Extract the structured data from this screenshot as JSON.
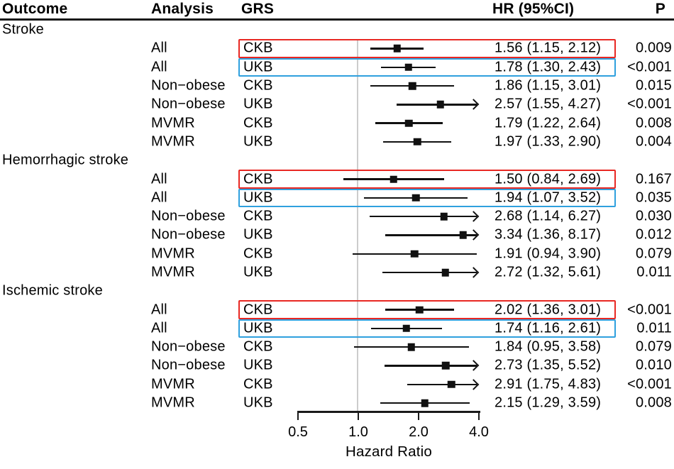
{
  "chart_data": {
    "type": "forest",
    "columns": [
      "Outcome",
      "Analysis",
      "GRS",
      "HR (95%CI)",
      "P"
    ],
    "xlabel": "Hazard Ratio",
    "axis": {
      "scale": "log2",
      "ticks": [
        0.5,
        1.0,
        2.0,
        4.0
      ],
      "tick_labels": [
        "0.5",
        "1.0",
        "2.0",
        "4.0"
      ],
      "range": [
        0.5,
        4.0
      ],
      "reference_line": 1.0,
      "clip_max": 4.0
    },
    "colors": {
      "highlight_red": "#e82823",
      "highlight_blue": "#2fa0de",
      "marker": "#111111",
      "reference_line": "#cccccc"
    },
    "groups": [
      {
        "outcome": "Stroke",
        "rows": [
          {
            "analysis": "All",
            "grs": "CKB",
            "hr": 1.56,
            "ci_low": 1.15,
            "ci_high": 2.12,
            "hr_ci": "1.56 (1.15, 2.12)",
            "p": "0.009",
            "highlight": "red"
          },
          {
            "analysis": "All",
            "grs": "UKB",
            "hr": 1.78,
            "ci_low": 1.3,
            "ci_high": 2.43,
            "hr_ci": "1.78 (1.30, 2.43)",
            "p": "<0.001",
            "highlight": "blue"
          },
          {
            "analysis": "Non−obese",
            "grs": "CKB",
            "hr": 1.86,
            "ci_low": 1.15,
            "ci_high": 3.01,
            "hr_ci": "1.86 (1.15, 3.01)",
            "p": "0.015",
            "highlight": null
          },
          {
            "analysis": "Non−obese",
            "grs": "UKB",
            "hr": 2.57,
            "ci_low": 1.55,
            "ci_high": 4.27,
            "hr_ci": "2.57 (1.55, 4.27)",
            "p": "<0.001",
            "highlight": null
          },
          {
            "analysis": "MVMR",
            "grs": "CKB",
            "hr": 1.79,
            "ci_low": 1.22,
            "ci_high": 2.64,
            "hr_ci": "1.79 (1.22, 2.64)",
            "p": "0.008",
            "highlight": null
          },
          {
            "analysis": "MVMR",
            "grs": "UKB",
            "hr": 1.97,
            "ci_low": 1.33,
            "ci_high": 2.9,
            "hr_ci": "1.97 (1.33, 2.90)",
            "p": "0.004",
            "highlight": null
          }
        ]
      },
      {
        "outcome": "Hemorrhagic stroke",
        "rows": [
          {
            "analysis": "All",
            "grs": "CKB",
            "hr": 1.5,
            "ci_low": 0.84,
            "ci_high": 2.69,
            "hr_ci": "1.50 (0.84, 2.69)",
            "p": "0.167",
            "highlight": "red"
          },
          {
            "analysis": "All",
            "grs": "UKB",
            "hr": 1.94,
            "ci_low": 1.07,
            "ci_high": 3.52,
            "hr_ci": "1.94 (1.07, 3.52)",
            "p": "0.035",
            "highlight": "blue"
          },
          {
            "analysis": "Non−obese",
            "grs": "CKB",
            "hr": 2.68,
            "ci_low": 1.14,
            "ci_high": 6.27,
            "hr_ci": "2.68 (1.14, 6.27)",
            "p": "0.030",
            "highlight": null
          },
          {
            "analysis": "Non−obese",
            "grs": "UKB",
            "hr": 3.34,
            "ci_low": 1.36,
            "ci_high": 8.17,
            "hr_ci": "3.34 (1.36, 8.17)",
            "p": "0.012",
            "highlight": null
          },
          {
            "analysis": "MVMR",
            "grs": "CKB",
            "hr": 1.91,
            "ci_low": 0.94,
            "ci_high": 3.9,
            "hr_ci": "1.91 (0.94, 3.90)",
            "p": "0.079",
            "highlight": null
          },
          {
            "analysis": "MVMR",
            "grs": "UKB",
            "hr": 2.72,
            "ci_low": 1.32,
            "ci_high": 5.61,
            "hr_ci": "2.72 (1.32, 5.61)",
            "p": "0.011",
            "highlight": null
          }
        ]
      },
      {
        "outcome": "Ischemic stroke",
        "rows": [
          {
            "analysis": "All",
            "grs": "CKB",
            "hr": 2.02,
            "ci_low": 1.36,
            "ci_high": 3.01,
            "hr_ci": "2.02 (1.36, 3.01)",
            "p": "<0.001",
            "highlight": "red"
          },
          {
            "analysis": "All",
            "grs": "UKB",
            "hr": 1.74,
            "ci_low": 1.16,
            "ci_high": 2.61,
            "hr_ci": "1.74 (1.16, 2.61)",
            "p": "0.011",
            "highlight": "blue"
          },
          {
            "analysis": "Non−obese",
            "grs": "CKB",
            "hr": 1.84,
            "ci_low": 0.95,
            "ci_high": 3.58,
            "hr_ci": "1.84 (0.95, 3.58)",
            "p": "0.079",
            "highlight": null
          },
          {
            "analysis": "Non−obese",
            "grs": "UKB",
            "hr": 2.73,
            "ci_low": 1.35,
            "ci_high": 5.52,
            "hr_ci": "2.73 (1.35, 5.52)",
            "p": "0.010",
            "highlight": null
          },
          {
            "analysis": "MVMR",
            "grs": "CKB",
            "hr": 2.91,
            "ci_low": 1.75,
            "ci_high": 4.83,
            "hr_ci": "2.91 (1.75, 4.83)",
            "p": "<0.001",
            "highlight": null
          },
          {
            "analysis": "MVMR",
            "grs": "UKB",
            "hr": 2.15,
            "ci_low": 1.29,
            "ci_high": 3.59,
            "hr_ci": "2.15 (1.29, 3.59)",
            "p": "0.008",
            "highlight": null
          }
        ]
      }
    ]
  }
}
